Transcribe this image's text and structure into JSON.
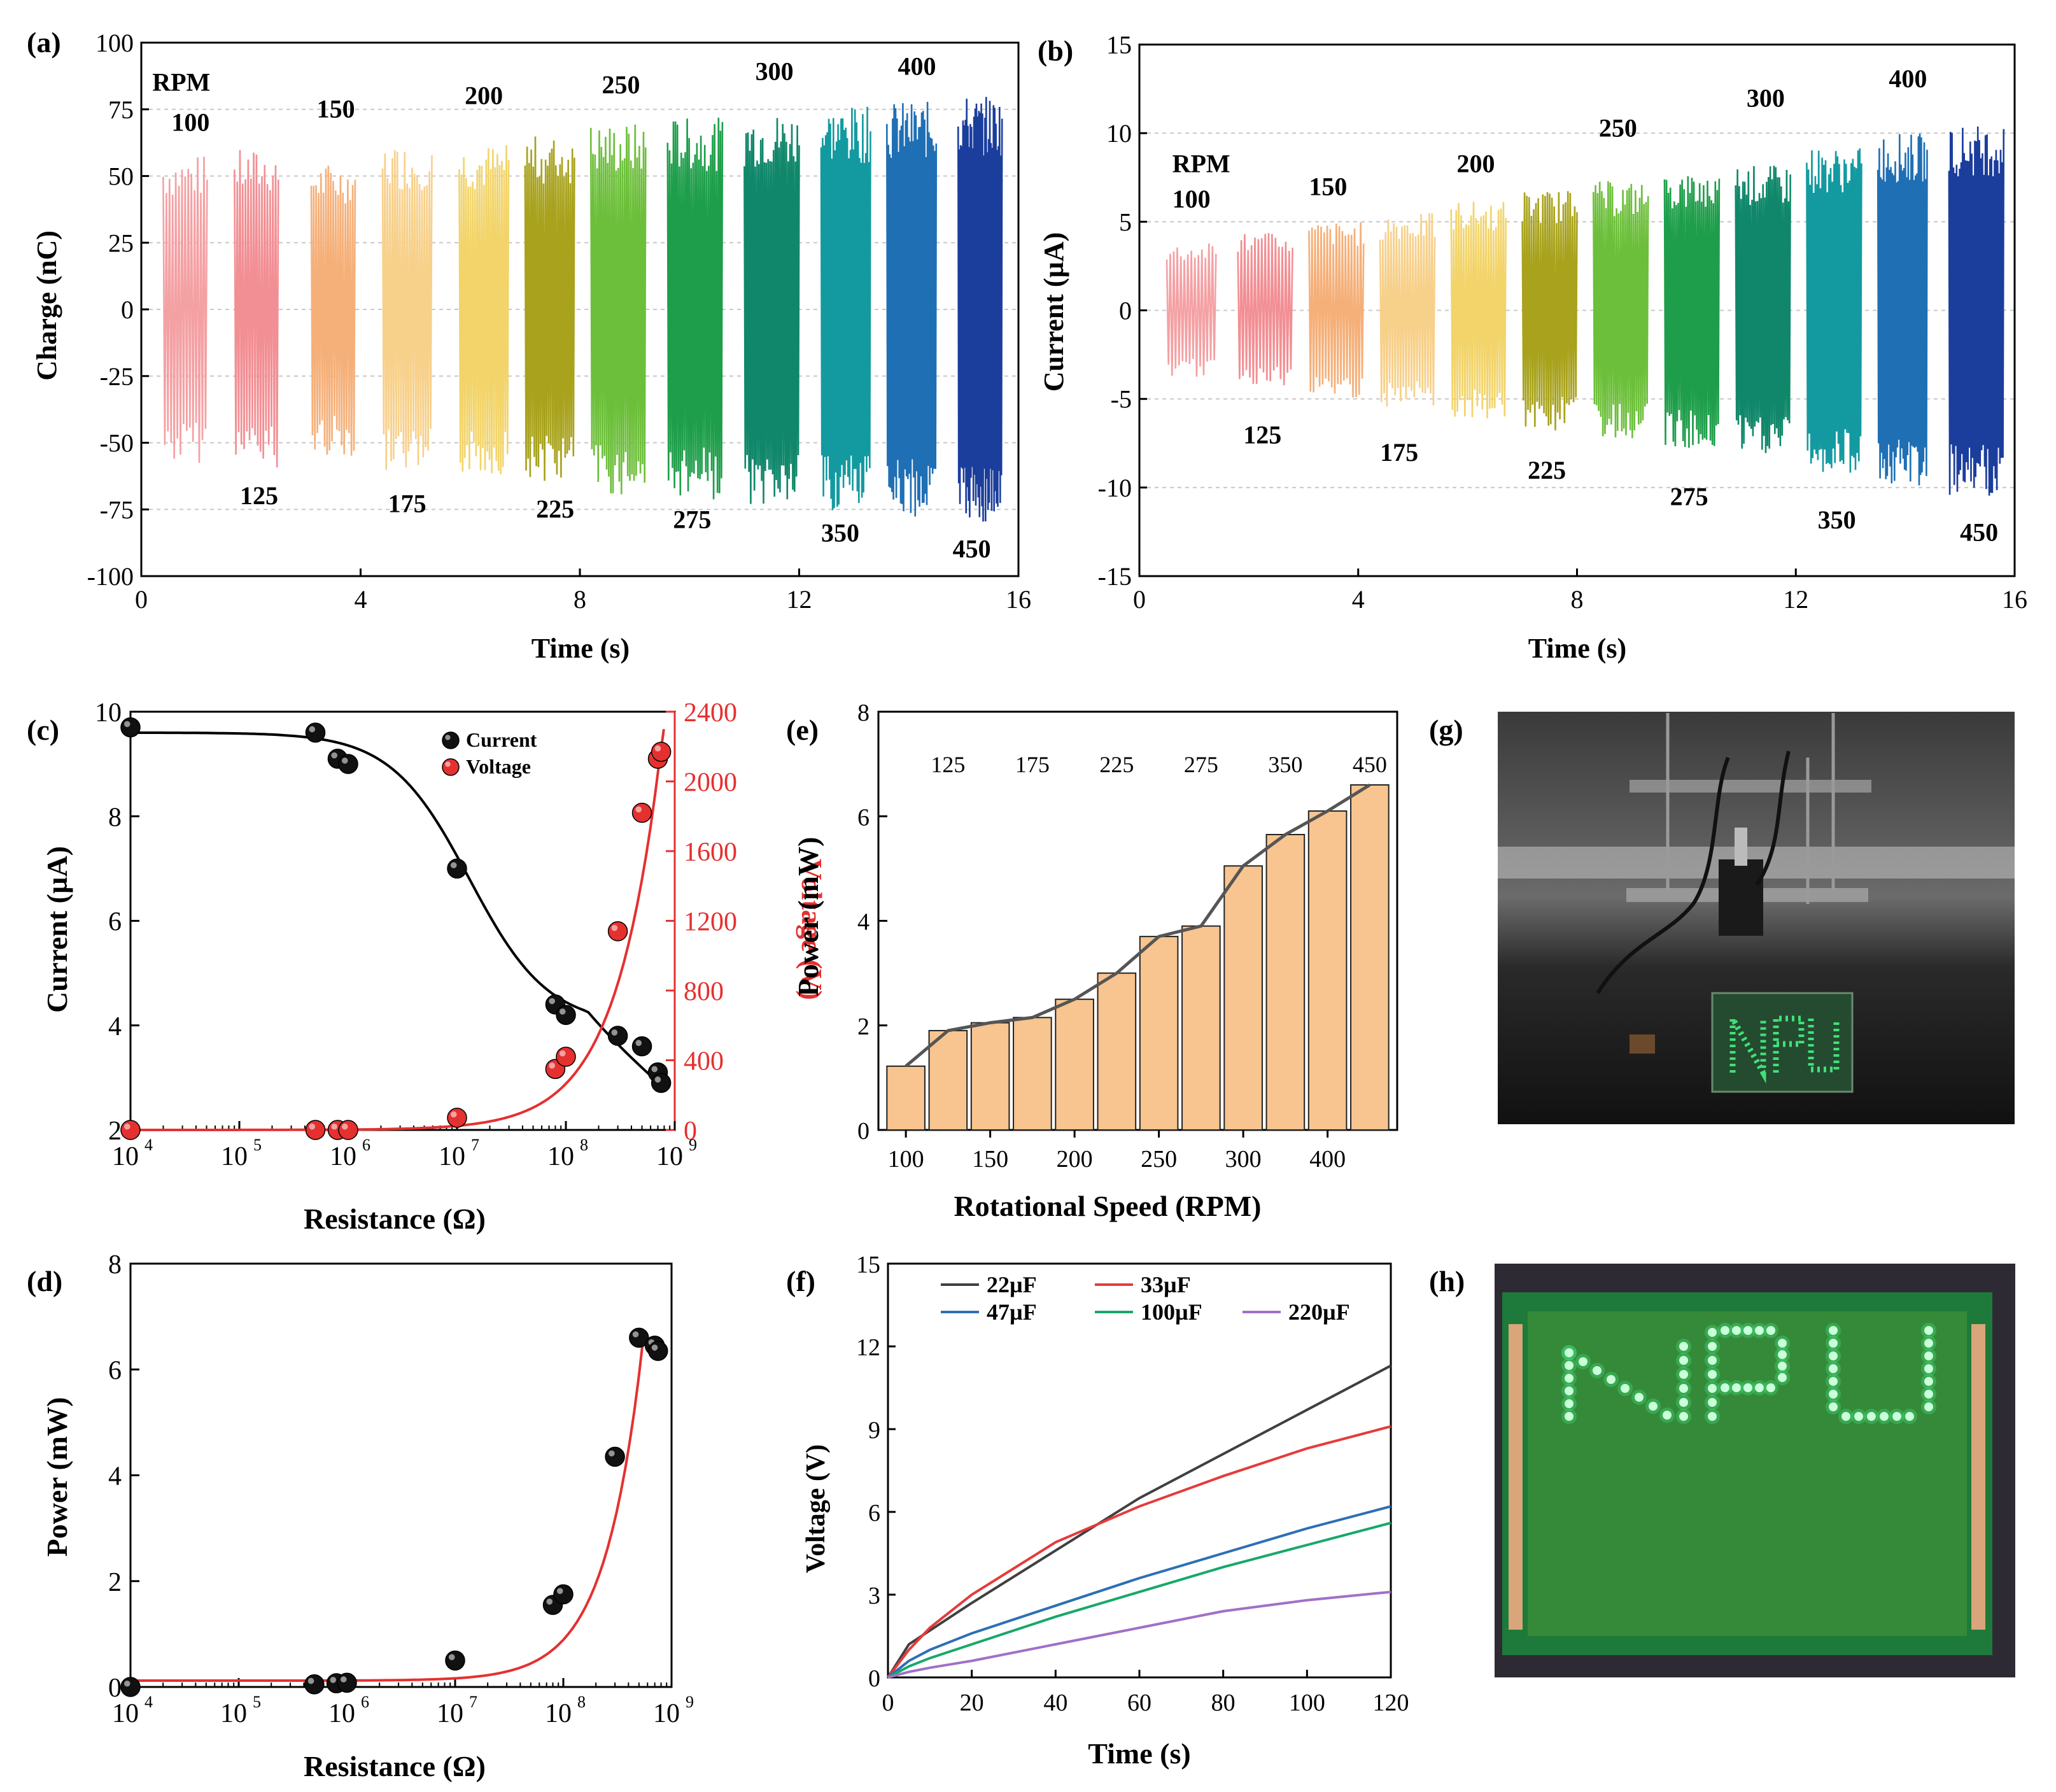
{
  "panels": {
    "a": {
      "label": "(a)",
      "xlabel": "Time (s)",
      "ylabel": "Charge (nC)"
    },
    "b": {
      "label": "(b)",
      "xlabel": "Time (s)",
      "ylabel": "Current (µA)"
    },
    "c": {
      "label": "(c)",
      "xlabel": "Resistance (Ω)",
      "ylabel": "Current (µA)",
      "y2label": "Voltage (V)"
    },
    "d": {
      "label": "(d)",
      "xlabel": "Resistance (Ω)",
      "ylabel": "Power (mW)"
    },
    "e": {
      "label": "(e)",
      "xlabel": "Rotational Speed (RPM)",
      "ylabel": "Power (mW)"
    },
    "f": {
      "label": "(f)",
      "xlabel": "Time (s)",
      "ylabel": "Voltage (V)"
    },
    "g": {
      "label": "(g)"
    },
    "h": {
      "label": "(h)"
    }
  },
  "colors": {
    "rpm": [
      "#f4a1a4",
      "#f28f94",
      "#f5b07a",
      "#f7d08a",
      "#f2d46a",
      "#a8a21c",
      "#6cbf3a",
      "#1e9e4a",
      "#10876a",
      "#139aa0",
      "#1f6fb5",
      "#1b3d9c"
    ],
    "current_marker": "#111111",
    "voltage_marker": "#e53030",
    "bar_fill": "#f8c48f",
    "line_dark": "#555555",
    "fit_red": "#e53030",
    "f_series": [
      "#404040",
      "#e53b3b",
      "#2c6fb5",
      "#17a86a",
      "#a070c8"
    ],
    "photo_bg": "#2b2b2b",
    "led_green": "#41e07a",
    "pcb_green": "#1e7a3a"
  },
  "chart_data": [
    {
      "id": "a",
      "type": "line",
      "xlim": [
        0,
        16
      ],
      "ylim": [
        -100,
        100
      ],
      "xticks": [
        0,
        4,
        8,
        12,
        16
      ],
      "yticks": [
        -100,
        -75,
        -50,
        -25,
        0,
        25,
        50,
        75,
        100
      ],
      "segments": [
        {
          "rpm": "100",
          "t": [
            0.4,
            1.2
          ],
          "amp": 58
        },
        {
          "rpm": "125",
          "t": [
            1.7,
            2.5
          ],
          "amp": 60
        },
        {
          "rpm": "150",
          "t": [
            3.1,
            3.9
          ],
          "amp": 55
        },
        {
          "rpm": "175",
          "t": [
            4.4,
            5.3
          ],
          "amp": 62
        },
        {
          "rpm": "200",
          "t": [
            5.8,
            6.7
          ],
          "amp": 62
        },
        {
          "rpm": "225",
          "t": [
            7.0,
            7.9
          ],
          "amp": 65
        },
        {
          "rpm": "250",
          "t": [
            8.2,
            9.2
          ],
          "amp": 70
        },
        {
          "rpm": "275",
          "t": [
            9.6,
            10.6
          ],
          "amp": 72
        },
        {
          "rpm": "300",
          "t": [
            11.0,
            12.0
          ],
          "amp": 74
        },
        {
          "rpm": "350",
          "t": [
            12.4,
            13.3
          ],
          "amp": 76
        },
        {
          "rpm": "400",
          "t": [
            13.6,
            14.5
          ],
          "amp": 78
        },
        {
          "rpm": "450",
          "t": [
            14.9,
            15.7
          ],
          "amp": 80
        }
      ],
      "annotations": [
        {
          "text": "RPM",
          "x": 0.2,
          "y": 82
        },
        {
          "text": "100",
          "x": 0.55,
          "y": 67
        },
        {
          "text": "125",
          "x": 1.8,
          "y": -73
        },
        {
          "text": "150",
          "x": 3.2,
          "y": 72
        },
        {
          "text": "175",
          "x": 4.5,
          "y": -76
        },
        {
          "text": "200",
          "x": 5.9,
          "y": 77
        },
        {
          "text": "225",
          "x": 7.2,
          "y": -78
        },
        {
          "text": "250",
          "x": 8.4,
          "y": 81
        },
        {
          "text": "275",
          "x": 9.7,
          "y": -82
        },
        {
          "text": "300",
          "x": 11.2,
          "y": 86
        },
        {
          "text": "350",
          "x": 12.4,
          "y": -87
        },
        {
          "text": "400",
          "x": 13.8,
          "y": 88
        },
        {
          "text": "450",
          "x": 14.8,
          "y": -93
        }
      ]
    },
    {
      "id": "b",
      "type": "line",
      "xlim": [
        0,
        16
      ],
      "ylim": [
        -15,
        15
      ],
      "xticks": [
        0,
        4,
        8,
        12,
        16
      ],
      "yticks": [
        -15,
        -10,
        -5,
        0,
        5,
        10,
        15
      ],
      "segments": [
        {
          "rpm": "100",
          "t": [
            0.5,
            1.4
          ],
          "amp": 3.8
        },
        {
          "rpm": "125",
          "t": [
            1.8,
            2.8
          ],
          "amp": 4.4
        },
        {
          "rpm": "150",
          "t": [
            3.1,
            4.1
          ],
          "amp": 5.0
        },
        {
          "rpm": "175",
          "t": [
            4.4,
            5.4
          ],
          "amp": 5.5
        },
        {
          "rpm": "200",
          "t": [
            5.7,
            6.7
          ],
          "amp": 6.2
        },
        {
          "rpm": "225",
          "t": [
            7.0,
            8.0
          ],
          "amp": 6.8
        },
        {
          "rpm": "250",
          "t": [
            8.3,
            9.3
          ],
          "amp": 7.3
        },
        {
          "rpm": "275",
          "t": [
            9.6,
            10.6
          ],
          "amp": 7.8
        },
        {
          "rpm": "300",
          "t": [
            10.9,
            11.9
          ],
          "amp": 8.2
        },
        {
          "rpm": "350",
          "t": [
            12.2,
            13.2
          ],
          "amp": 9.2
        },
        {
          "rpm": "400",
          "t": [
            13.5,
            14.4
          ],
          "amp": 10.0
        },
        {
          "rpm": "450",
          "t": [
            14.8,
            15.8
          ],
          "amp": 10.5
        }
      ],
      "annotations": [
        {
          "text": "RPM",
          "x": 0.6,
          "y": 7.8
        },
        {
          "text": "100",
          "x": 0.6,
          "y": 5.8
        },
        {
          "text": "125",
          "x": 1.9,
          "y": -7.5
        },
        {
          "text": "150",
          "x": 3.1,
          "y": 6.5
        },
        {
          "text": "175",
          "x": 4.4,
          "y": -8.5
        },
        {
          "text": "200",
          "x": 5.8,
          "y": 7.8
        },
        {
          "text": "225",
          "x": 7.1,
          "y": -9.5
        },
        {
          "text": "250",
          "x": 8.4,
          "y": 9.8
        },
        {
          "text": "275",
          "x": 9.7,
          "y": -11.0
        },
        {
          "text": "300",
          "x": 11.1,
          "y": 11.5
        },
        {
          "text": "350",
          "x": 12.4,
          "y": -12.3
        },
        {
          "text": "400",
          "x": 13.7,
          "y": 12.6
        },
        {
          "text": "450",
          "x": 15.0,
          "y": -13.0
        }
      ]
    },
    {
      "id": "c",
      "type": "scatter",
      "xscale": "log",
      "xlim": [
        10000,
        1000000000
      ],
      "xticks": [
        "10",
        "10",
        "10",
        "10",
        "10",
        "10"
      ],
      "xtick_exp": [
        "4",
        "5",
        "6",
        "7",
        "8",
        "9"
      ],
      "ylim": [
        2,
        10
      ],
      "yticks": [
        2,
        4,
        6,
        8,
        10
      ],
      "y2lim": [
        0,
        2400
      ],
      "y2ticks": [
        0,
        400,
        800,
        1200,
        1600,
        2000,
        2400
      ],
      "legend": [
        "Current",
        "Voltage"
      ],
      "current": {
        "x": [
          10000,
          500000,
          800000,
          1000000,
          10000000,
          80000000,
          100000000,
          300000000,
          500000000,
          700000000,
          750000000
        ],
        "y": [
          9.7,
          9.6,
          9.1,
          9.0,
          7.0,
          4.4,
          4.2,
          3.8,
          3.6,
          3.1,
          2.9
        ]
      },
      "voltage": {
        "x": [
          10000,
          500000,
          800000,
          1000000,
          10000000,
          80000000,
          100000000,
          300000000,
          500000000,
          700000000,
          750000000
        ],
        "y": [
          0,
          0,
          0,
          0,
          70,
          350,
          420,
          1140,
          1820,
          2130,
          2170
        ]
      }
    },
    {
      "id": "d",
      "type": "scatter",
      "xscale": "log",
      "xlim": [
        10000,
        1000000000
      ],
      "xticks": [
        "10",
        "10",
        "10",
        "10",
        "10",
        "10"
      ],
      "xtick_exp": [
        "4",
        "5",
        "6",
        "7",
        "8",
        "9"
      ],
      "ylim": [
        0,
        8
      ],
      "yticks": [
        0,
        2,
        4,
        6,
        8
      ],
      "points": {
        "x": [
          10000,
          500000,
          800000,
          1000000,
          10000000,
          80000000,
          100000000,
          300000000,
          500000000,
          700000000,
          750000000
        ],
        "y": [
          0.0,
          0.05,
          0.07,
          0.08,
          0.5,
          1.55,
          1.75,
          4.35,
          6.6,
          6.45,
          6.35
        ]
      }
    },
    {
      "id": "e",
      "type": "bar",
      "categories": [
        "100",
        "125",
        "150",
        "175",
        "200",
        "225",
        "250",
        "275",
        "300",
        "350",
        "400",
        "450"
      ],
      "values": [
        1.22,
        1.9,
        2.05,
        2.15,
        2.5,
        3.0,
        3.7,
        3.9,
        5.05,
        5.65,
        6.1,
        6.6
      ],
      "xticks": [
        "100",
        "150",
        "200",
        "250",
        "300",
        "400"
      ],
      "top_labels": [
        "125",
        "175",
        "225",
        "275",
        "350",
        "450"
      ],
      "ylim": [
        0,
        8
      ],
      "yticks": [
        0,
        2,
        4,
        6,
        8
      ]
    },
    {
      "id": "f",
      "type": "line",
      "xlim": [
        0,
        120
      ],
      "ylim": [
        0,
        15
      ],
      "xticks": [
        0,
        20,
        40,
        60,
        80,
        100,
        120
      ],
      "yticks": [
        0,
        3,
        6,
        9,
        12,
        15
      ],
      "series": [
        {
          "name": "22µF",
          "x": [
            0,
            5,
            10,
            20,
            40,
            60,
            80,
            100,
            120
          ],
          "y": [
            0,
            1.2,
            1.7,
            2.7,
            4.6,
            6.5,
            8.1,
            9.7,
            11.3
          ]
        },
        {
          "name": "33µF",
          "x": [
            0,
            5,
            10,
            20,
            40,
            60,
            80,
            100,
            120
          ],
          "y": [
            0,
            1.0,
            1.8,
            3.0,
            4.9,
            6.2,
            7.3,
            8.3,
            9.1
          ]
        },
        {
          "name": "47µF",
          "x": [
            0,
            5,
            10,
            20,
            40,
            60,
            80,
            100,
            120
          ],
          "y": [
            0,
            0.6,
            1.0,
            1.6,
            2.6,
            3.6,
            4.5,
            5.4,
            6.2
          ]
        },
        {
          "name": "100µF",
          "x": [
            0,
            5,
            10,
            20,
            40,
            60,
            80,
            100,
            120
          ],
          "y": [
            0,
            0.4,
            0.7,
            1.2,
            2.2,
            3.1,
            4.0,
            4.8,
            5.6
          ]
        },
        {
          "name": "220µF",
          "x": [
            0,
            5,
            10,
            20,
            40,
            60,
            80,
            100,
            120
          ],
          "y": [
            0,
            0.2,
            0.35,
            0.6,
            1.2,
            1.8,
            2.4,
            2.8,
            3.1
          ]
        }
      ]
    }
  ]
}
